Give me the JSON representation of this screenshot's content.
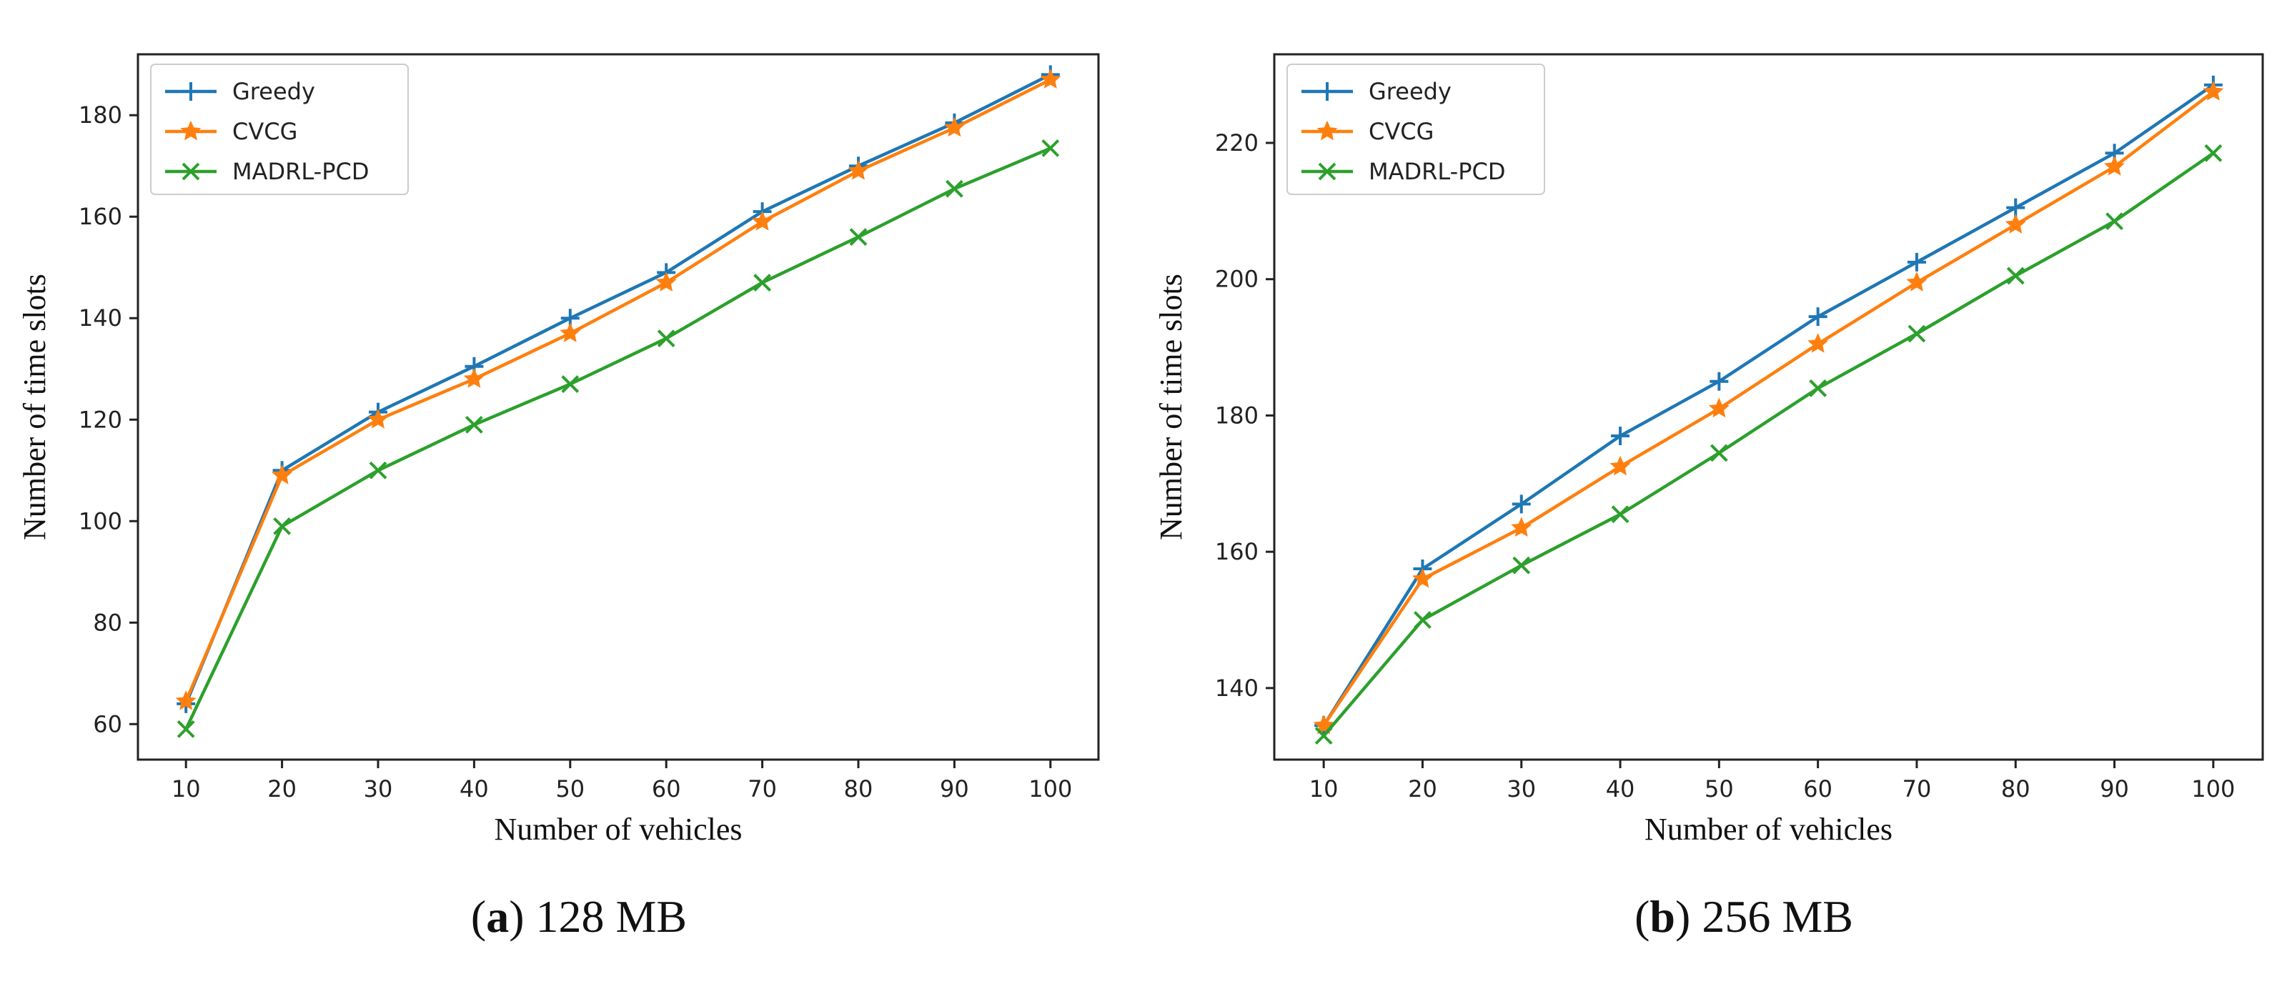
{
  "chart_data": [
    {
      "type": "line",
      "caption_letter": "a",
      "caption_text": "128 MB",
      "xlabel": "Number of vehicles",
      "ylabel": "Number of time slots",
      "xlim": [
        5,
        105
      ],
      "ylim": [
        53,
        192
      ],
      "x_ticks": [
        10,
        20,
        30,
        40,
        50,
        60,
        70,
        80,
        90,
        100
      ],
      "y_ticks": [
        60,
        80,
        100,
        120,
        140,
        160,
        180
      ],
      "legend_position": "top-left",
      "series": [
        {
          "name": "Greedy",
          "color": "#1f77b4",
          "marker": "plus",
          "x": [
            10,
            20,
            30,
            40,
            50,
            60,
            70,
            80,
            90,
            100
          ],
          "values": [
            64,
            110,
            121.5,
            130.5,
            140,
            149,
            161,
            170,
            178.5,
            188
          ]
        },
        {
          "name": "CVCG",
          "color": "#ff7f0e",
          "marker": "star",
          "x": [
            10,
            20,
            30,
            40,
            50,
            60,
            70,
            80,
            90,
            100
          ],
          "values": [
            64.5,
            109,
            120,
            128,
            137,
            147,
            159,
            169,
            177.5,
            187
          ]
        },
        {
          "name": "MADRL-PCD",
          "color": "#2ca02c",
          "marker": "x",
          "x": [
            10,
            20,
            30,
            40,
            50,
            60,
            70,
            80,
            90,
            100
          ],
          "values": [
            59,
            99,
            110,
            119,
            127,
            136,
            147,
            156,
            165.5,
            173.5
          ]
        }
      ]
    },
    {
      "type": "line",
      "caption_letter": "b",
      "caption_text": "256 MB",
      "xlabel": "Number of vehicles",
      "ylabel": "Number of time slots",
      "xlim": [
        5,
        105
      ],
      "ylim": [
        129.5,
        233
      ],
      "x_ticks": [
        10,
        20,
        30,
        40,
        50,
        60,
        70,
        80,
        90,
        100
      ],
      "y_ticks": [
        140,
        160,
        180,
        200,
        220
      ],
      "legend_position": "top-left",
      "series": [
        {
          "name": "Greedy",
          "color": "#1f77b4",
          "marker": "plus",
          "x": [
            10,
            20,
            30,
            40,
            50,
            60,
            70,
            80,
            90,
            100
          ],
          "values": [
            134.5,
            157.5,
            167,
            177,
            185,
            194.5,
            202.5,
            210.5,
            218.5,
            228.5
          ]
        },
        {
          "name": "CVCG",
          "color": "#ff7f0e",
          "marker": "star",
          "x": [
            10,
            20,
            30,
            40,
            50,
            60,
            70,
            80,
            90,
            100
          ],
          "values": [
            134.5,
            156,
            163.5,
            172.5,
            181,
            190.5,
            199.5,
            208,
            216.5,
            227.5
          ]
        },
        {
          "name": "MADRL-PCD",
          "color": "#2ca02c",
          "marker": "x",
          "x": [
            10,
            20,
            30,
            40,
            50,
            60,
            70,
            80,
            90,
            100
          ],
          "values": [
            133,
            150,
            158,
            165.5,
            174.5,
            184,
            192,
            200.5,
            208.5,
            218.5
          ]
        }
      ]
    }
  ]
}
